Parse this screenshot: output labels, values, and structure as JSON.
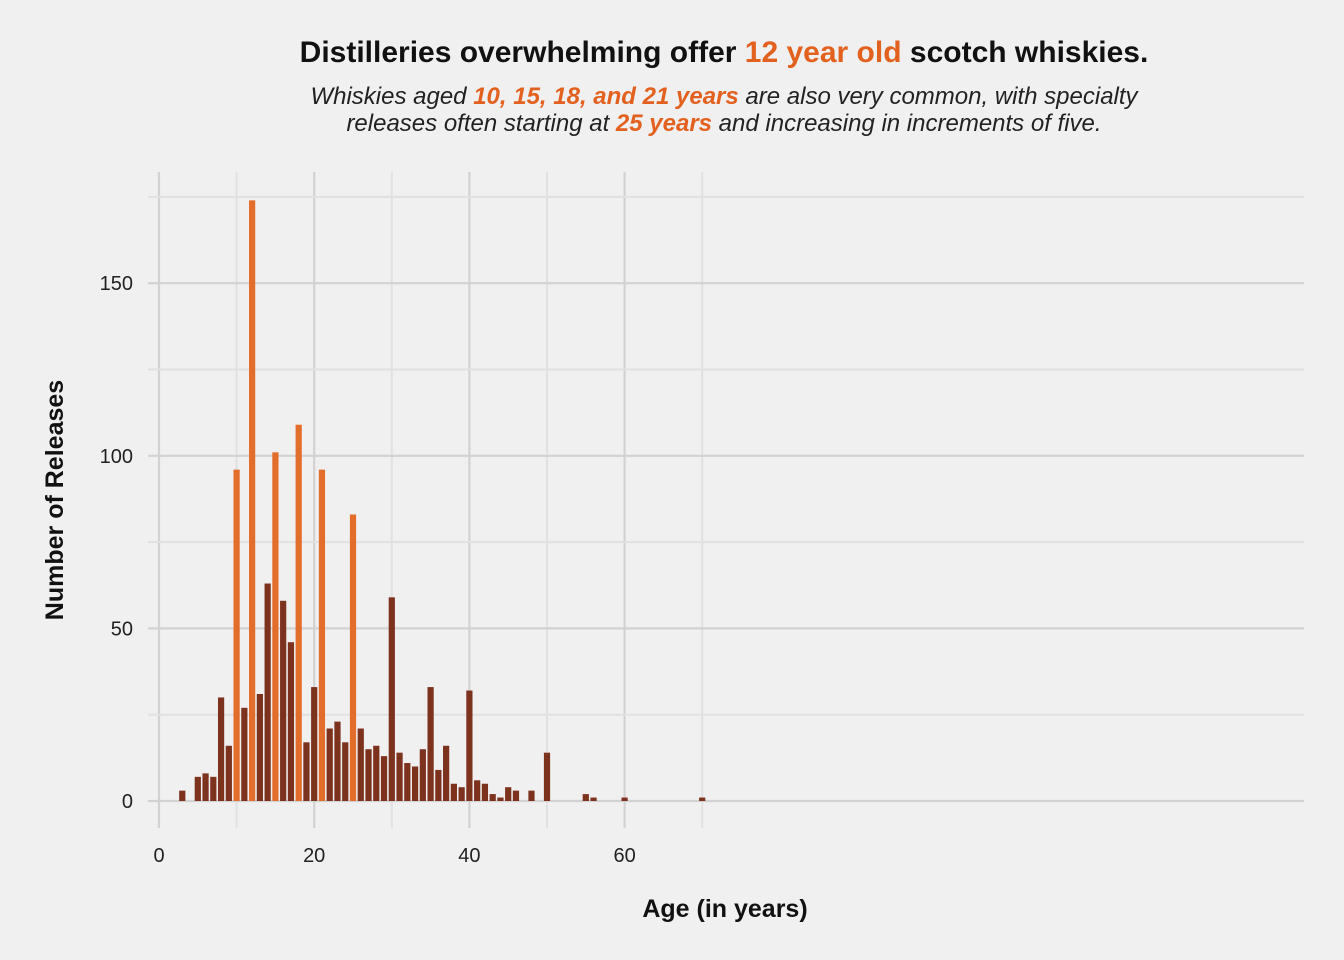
{
  "header": {
    "title_pre": "Distilleries overwhelming offer ",
    "title_highlight": "12 year old",
    "title_post": " scotch whiskies.",
    "subtitle_1a": "Whiskies aged ",
    "subtitle_1b": "10, 15, 18, and 21 years",
    "subtitle_1c": " are also very common, with specialty",
    "subtitle_2a": "releases often starting at ",
    "subtitle_2b": "25 years",
    "subtitle_2c": " and increasing in increments of five."
  },
  "colors": {
    "background": "#f0f0f0",
    "highlight": "#e36d2a",
    "base": "#7d321e",
    "grid": "#d2d2d2",
    "grid_minor": "#e1e1e1"
  },
  "chart_data": {
    "type": "bar",
    "xlabel": "Age (in years)",
    "ylabel": "Number of Releases",
    "xlim": [
      0,
      70
    ],
    "ylim": [
      0,
      174
    ],
    "xticks": [
      0,
      20,
      40,
      60
    ],
    "yticks": [
      0,
      50,
      100,
      150
    ],
    "grid": true,
    "highlighted_ages": [
      10,
      12,
      15,
      18,
      21,
      25
    ],
    "x": [
      3,
      5,
      6,
      7,
      8,
      9,
      10,
      11,
      12,
      13,
      14,
      15,
      16,
      17,
      18,
      19,
      20,
      21,
      22,
      23,
      24,
      25,
      26,
      27,
      28,
      29,
      30,
      31,
      32,
      33,
      34,
      35,
      36,
      37,
      38,
      39,
      40,
      41,
      42,
      43,
      44,
      45,
      46,
      48,
      50,
      55,
      56,
      60,
      70
    ],
    "values": [
      3,
      7,
      8,
      7,
      30,
      16,
      96,
      27,
      174,
      31,
      63,
      101,
      58,
      46,
      109,
      17,
      33,
      96,
      21,
      23,
      17,
      83,
      21,
      15,
      16,
      13,
      59,
      14,
      11,
      10,
      15,
      33,
      9,
      16,
      5,
      4,
      32,
      6,
      5,
      2,
      1,
      4,
      3,
      3,
      14,
      2,
      1,
      1,
      1
    ]
  }
}
